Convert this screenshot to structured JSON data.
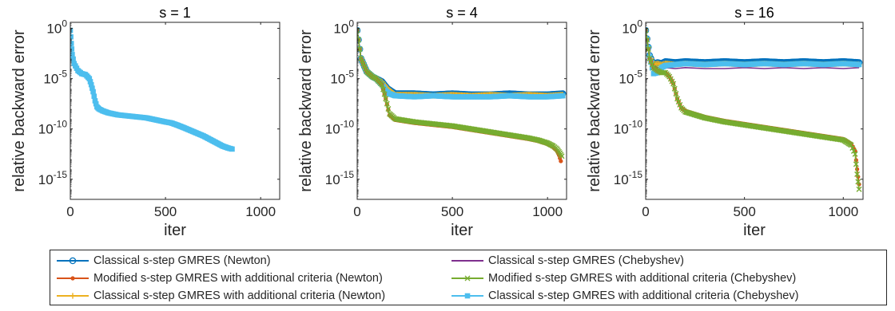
{
  "chart_data": [
    {
      "type": "line",
      "title": "s = 1",
      "xlabel": "iter",
      "ylabel": "relative backward error",
      "xlim": [
        0,
        1100
      ],
      "ylim_log10": [
        -17,
        0.6
      ],
      "yscale": "log",
      "xticks": [
        0,
        500,
        1000
      ],
      "xtick_labels": [
        "0",
        "500",
        "1000"
      ],
      "yticks_log10": [
        0,
        -5,
        -10,
        -15
      ],
      "ytick_labels": [
        "10^0",
        "10^-5",
        "10^-10",
        "10^-15"
      ],
      "series": [
        {
          "name": "Classical s-step GMRES with additional criteria (Chebyshev)",
          "color": "#4DBEEE",
          "marker": "square",
          "x": [
            0,
            5,
            10,
            20,
            40,
            60,
            80,
            100,
            110,
            120,
            130,
            140,
            150,
            170,
            200,
            250,
            300,
            350,
            400,
            450,
            500,
            530,
            560,
            600,
            650,
            700,
            750,
            800,
            830,
            850
          ],
          "log10y": [
            -0.2,
            -1.5,
            -2.6,
            -3.5,
            -4.2,
            -4.5,
            -4.6,
            -5.0,
            -5.6,
            -6.3,
            -7.2,
            -7.8,
            -8.0,
            -8.2,
            -8.4,
            -8.6,
            -8.7,
            -8.8,
            -8.9,
            -9.1,
            -9.3,
            -9.4,
            -9.6,
            -9.9,
            -10.3,
            -10.7,
            -11.2,
            -11.7,
            -11.9,
            -12.0
          ]
        }
      ]
    },
    {
      "type": "line",
      "title": "s = 4",
      "xlabel": "iter",
      "ylabel": "relative backward error",
      "xlim": [
        0,
        1100
      ],
      "ylim_log10": [
        -17,
        0.6
      ],
      "yscale": "log",
      "xticks": [
        0,
        500,
        1000
      ],
      "xtick_labels": [
        "0",
        "500",
        "1000"
      ],
      "yticks_log10": [
        0,
        -5,
        -10,
        -15
      ],
      "ytick_labels": [
        "10^0",
        "10^-5",
        "10^-10",
        "10^-15"
      ],
      "series": [
        {
          "name": "Classical s-step GMRES (Newton)",
          "color": "#0072BD",
          "marker": "circle",
          "x": [
            0,
            20,
            50,
            80,
            100,
            130,
            160,
            200,
            300,
            400,
            500,
            600,
            700,
            800,
            900,
            1000,
            1080
          ],
          "log10y": [
            -0.2,
            -3.0,
            -4.3,
            -4.8,
            -5.0,
            -5.3,
            -6.0,
            -6.5,
            -6.5,
            -6.6,
            -6.5,
            -6.6,
            -6.6,
            -6.5,
            -6.6,
            -6.6,
            -6.5
          ]
        },
        {
          "name": "Classical s-step GMRES (Chebyshev)",
          "color": "#7E2F8E",
          "marker": "none",
          "x": [
            0,
            20,
            50,
            80,
            100,
            130,
            160,
            200,
            300,
            400,
            500,
            600,
            700,
            800,
            900,
            1000,
            1080
          ],
          "log10y": [
            -0.2,
            -3.0,
            -4.3,
            -4.8,
            -5.0,
            -5.4,
            -6.2,
            -6.9,
            -6.8,
            -6.9,
            -6.8,
            -6.9,
            -6.8,
            -6.9,
            -6.9,
            -6.8,
            -6.9
          ]
        },
        {
          "name": "Classical s-step GMRES with additional criteria (Newton)",
          "color": "#EDB120",
          "marker": "plus",
          "x": [
            0,
            20,
            50,
            80,
            100,
            130,
            160,
            200,
            300,
            400,
            500,
            600,
            700,
            800,
            900,
            1000,
            1080
          ],
          "log10y": [
            -0.2,
            -3.0,
            -4.3,
            -4.8,
            -5.0,
            -5.3,
            -6.0,
            -6.6,
            -6.6,
            -6.7,
            -6.6,
            -6.7,
            -6.6,
            -6.7,
            -6.6,
            -6.7,
            -6.6
          ]
        },
        {
          "name": "Classical s-step GMRES with additional criteria (Chebyshev)",
          "color": "#4DBEEE",
          "marker": "square",
          "x": [
            0,
            20,
            50,
            80,
            100,
            130,
            150,
            170,
            200,
            300,
            400,
            500,
            600,
            700,
            800,
            900,
            1000,
            1080
          ],
          "log10y": [
            -0.2,
            -3.0,
            -4.3,
            -4.8,
            -5.0,
            -5.6,
            -6.2,
            -6.5,
            -6.7,
            -6.8,
            -6.7,
            -6.8,
            -6.8,
            -6.8,
            -6.7,
            -6.8,
            -6.8,
            -6.7
          ]
        },
        {
          "name": "Modified s-step GMRES with additional criteria (Newton)",
          "color": "#D95319",
          "marker": "dot",
          "x": [
            0,
            20,
            50,
            80,
            100,
            130,
            150,
            170,
            200,
            300,
            400,
            500,
            600,
            700,
            800,
            900,
            950,
            1000,
            1030,
            1050,
            1060,
            1070
          ],
          "log10y": [
            -0.2,
            -3.0,
            -4.3,
            -4.8,
            -5.0,
            -5.6,
            -7.0,
            -8.6,
            -9.1,
            -9.4,
            -9.6,
            -9.8,
            -10.1,
            -10.4,
            -10.7,
            -11.0,
            -11.2,
            -11.5,
            -11.8,
            -12.2,
            -12.6,
            -13.2
          ]
        },
        {
          "name": "Modified s-step GMRES with additional criteria (Chebyshev)",
          "color": "#77AC30",
          "marker": "x",
          "x": [
            0,
            20,
            50,
            80,
            100,
            130,
            150,
            170,
            200,
            300,
            400,
            500,
            600,
            700,
            800,
            900,
            950,
            1000,
            1030,
            1050,
            1065,
            1075
          ],
          "log10y": [
            -0.2,
            -3.0,
            -4.3,
            -4.8,
            -5.0,
            -5.6,
            -7.0,
            -8.5,
            -9.0,
            -9.3,
            -9.5,
            -9.7,
            -10.0,
            -10.3,
            -10.6,
            -10.9,
            -11.1,
            -11.4,
            -11.7,
            -12.0,
            -12.4,
            -12.7
          ]
        }
      ]
    },
    {
      "type": "line",
      "title": "s = 16",
      "xlabel": "iter",
      "ylabel": "relative backward error",
      "xlim": [
        0,
        1100
      ],
      "ylim_log10": [
        -17,
        0.6
      ],
      "yscale": "log",
      "xticks": [
        0,
        500,
        1000
      ],
      "xtick_labels": [
        "0",
        "500",
        "1000"
      ],
      "yticks_log10": [
        0,
        -5,
        -10,
        -15
      ],
      "ytick_labels": [
        "10^0",
        "10^-5",
        "10^-10",
        "10^-15"
      ],
      "series": [
        {
          "name": "Classical s-step GMRES (Newton)",
          "color": "#0072BD",
          "marker": "circle",
          "x": [
            0,
            20,
            40,
            60,
            80,
            100,
            150,
            200,
            300,
            400,
            500,
            600,
            700,
            800,
            900,
            1000,
            1080
          ],
          "log10y": [
            -0.2,
            -2.7,
            -3.6,
            -3.4,
            -3.5,
            -3.3,
            -3.4,
            -3.3,
            -3.4,
            -3.3,
            -3.4,
            -3.3,
            -3.4,
            -3.3,
            -3.4,
            -3.3,
            -3.4
          ]
        },
        {
          "name": "Classical s-step GMRES (Chebyshev)",
          "color": "#7E2F8E",
          "marker": "none",
          "x": [
            0,
            20,
            40,
            60,
            80,
            100,
            150,
            200,
            300,
            400,
            500,
            600,
            700,
            800,
            900,
            1000,
            1080
          ],
          "log10y": [
            -0.2,
            -2.7,
            -3.7,
            -3.9,
            -4.0,
            -3.9,
            -4.0,
            -3.9,
            -4.0,
            -4.0,
            -3.9,
            -4.0,
            -3.9,
            -4.0,
            -3.9,
            -4.0,
            -3.9
          ]
        },
        {
          "name": "Classical s-step GMRES with additional criteria (Newton)",
          "color": "#EDB120",
          "marker": "plus",
          "x": [
            0,
            20,
            40,
            60,
            80,
            100,
            150,
            200,
            300,
            400,
            500,
            600,
            700,
            800,
            900,
            1000,
            1080
          ],
          "log10y": [
            -0.2,
            -2.7,
            -3.6,
            -3.5,
            -3.6,
            -3.5,
            -3.6,
            -3.5,
            -3.6,
            -3.5,
            -3.6,
            -3.5,
            -3.6,
            -3.5,
            -3.6,
            -3.5,
            -3.6
          ]
        },
        {
          "name": "Classical s-step GMRES with additional criteria (Chebyshev)",
          "color": "#4DBEEE",
          "marker": "square",
          "x": [
            0,
            20,
            40,
            60,
            80,
            100,
            150,
            200,
            300,
            400,
            500,
            600,
            700,
            800,
            900,
            1000,
            1080
          ],
          "log10y": [
            -0.2,
            -2.8,
            -4.5,
            -4.4,
            -3.9,
            -3.7,
            -3.6,
            -3.5,
            -3.6,
            -3.5,
            -3.6,
            -3.5,
            -3.6,
            -3.5,
            -3.6,
            -3.5,
            -3.6
          ]
        },
        {
          "name": "Modified s-step GMRES with additional criteria (Newton)",
          "color": "#D95319",
          "marker": "dot",
          "x": [
            0,
            20,
            40,
            60,
            80,
            100,
            120,
            140,
            160,
            180,
            200,
            300,
            400,
            500,
            600,
            700,
            800,
            900,
            1000,
            1040,
            1060,
            1070,
            1080
          ],
          "log10y": [
            -0.2,
            -3.0,
            -3.9,
            -4.2,
            -4.4,
            -4.4,
            -4.8,
            -5.5,
            -7.0,
            -7.9,
            -8.2,
            -8.8,
            -9.2,
            -9.5,
            -9.8,
            -10.1,
            -10.4,
            -10.7,
            -11.0,
            -11.5,
            -12.2,
            -14.0,
            -15.5
          ]
        },
        {
          "name": "Modified s-step GMRES with additional criteria (Chebyshev)",
          "color": "#77AC30",
          "marker": "x",
          "x": [
            0,
            20,
            40,
            60,
            80,
            100,
            120,
            140,
            160,
            180,
            200,
            300,
            400,
            500,
            600,
            700,
            800,
            900,
            1000,
            1040,
            1060,
            1070,
            1080
          ],
          "log10y": [
            -0.2,
            -3.0,
            -3.9,
            -4.2,
            -4.4,
            -4.4,
            -4.8,
            -5.5,
            -7.0,
            -7.9,
            -8.3,
            -8.9,
            -9.3,
            -9.6,
            -9.9,
            -10.2,
            -10.5,
            -10.8,
            -11.1,
            -11.6,
            -12.5,
            -14.5,
            -16.0
          ]
        }
      ]
    }
  ],
  "legend": {
    "location": "bottom",
    "entries": [
      {
        "label": "Classical s-step GMRES (Newton)",
        "color": "#0072BD",
        "marker": "circle"
      },
      {
        "label": "Classical s-step GMRES (Chebyshev)",
        "color": "#7E2F8E",
        "marker": "none"
      },
      {
        "label": "Modified s-step GMRES with additional criteria (Newton)",
        "color": "#D95319",
        "marker": "dot"
      },
      {
        "label": "Modified s-step GMRES with additional criteria (Chebyshev)",
        "color": "#77AC30",
        "marker": "x"
      },
      {
        "label": "Classical s-step GMRES with additional criteria (Newton)",
        "color": "#EDB120",
        "marker": "plus"
      },
      {
        "label": "Classical s-step GMRES with additional criteria (Chebyshev)",
        "color": "#4DBEEE",
        "marker": "square"
      }
    ]
  }
}
